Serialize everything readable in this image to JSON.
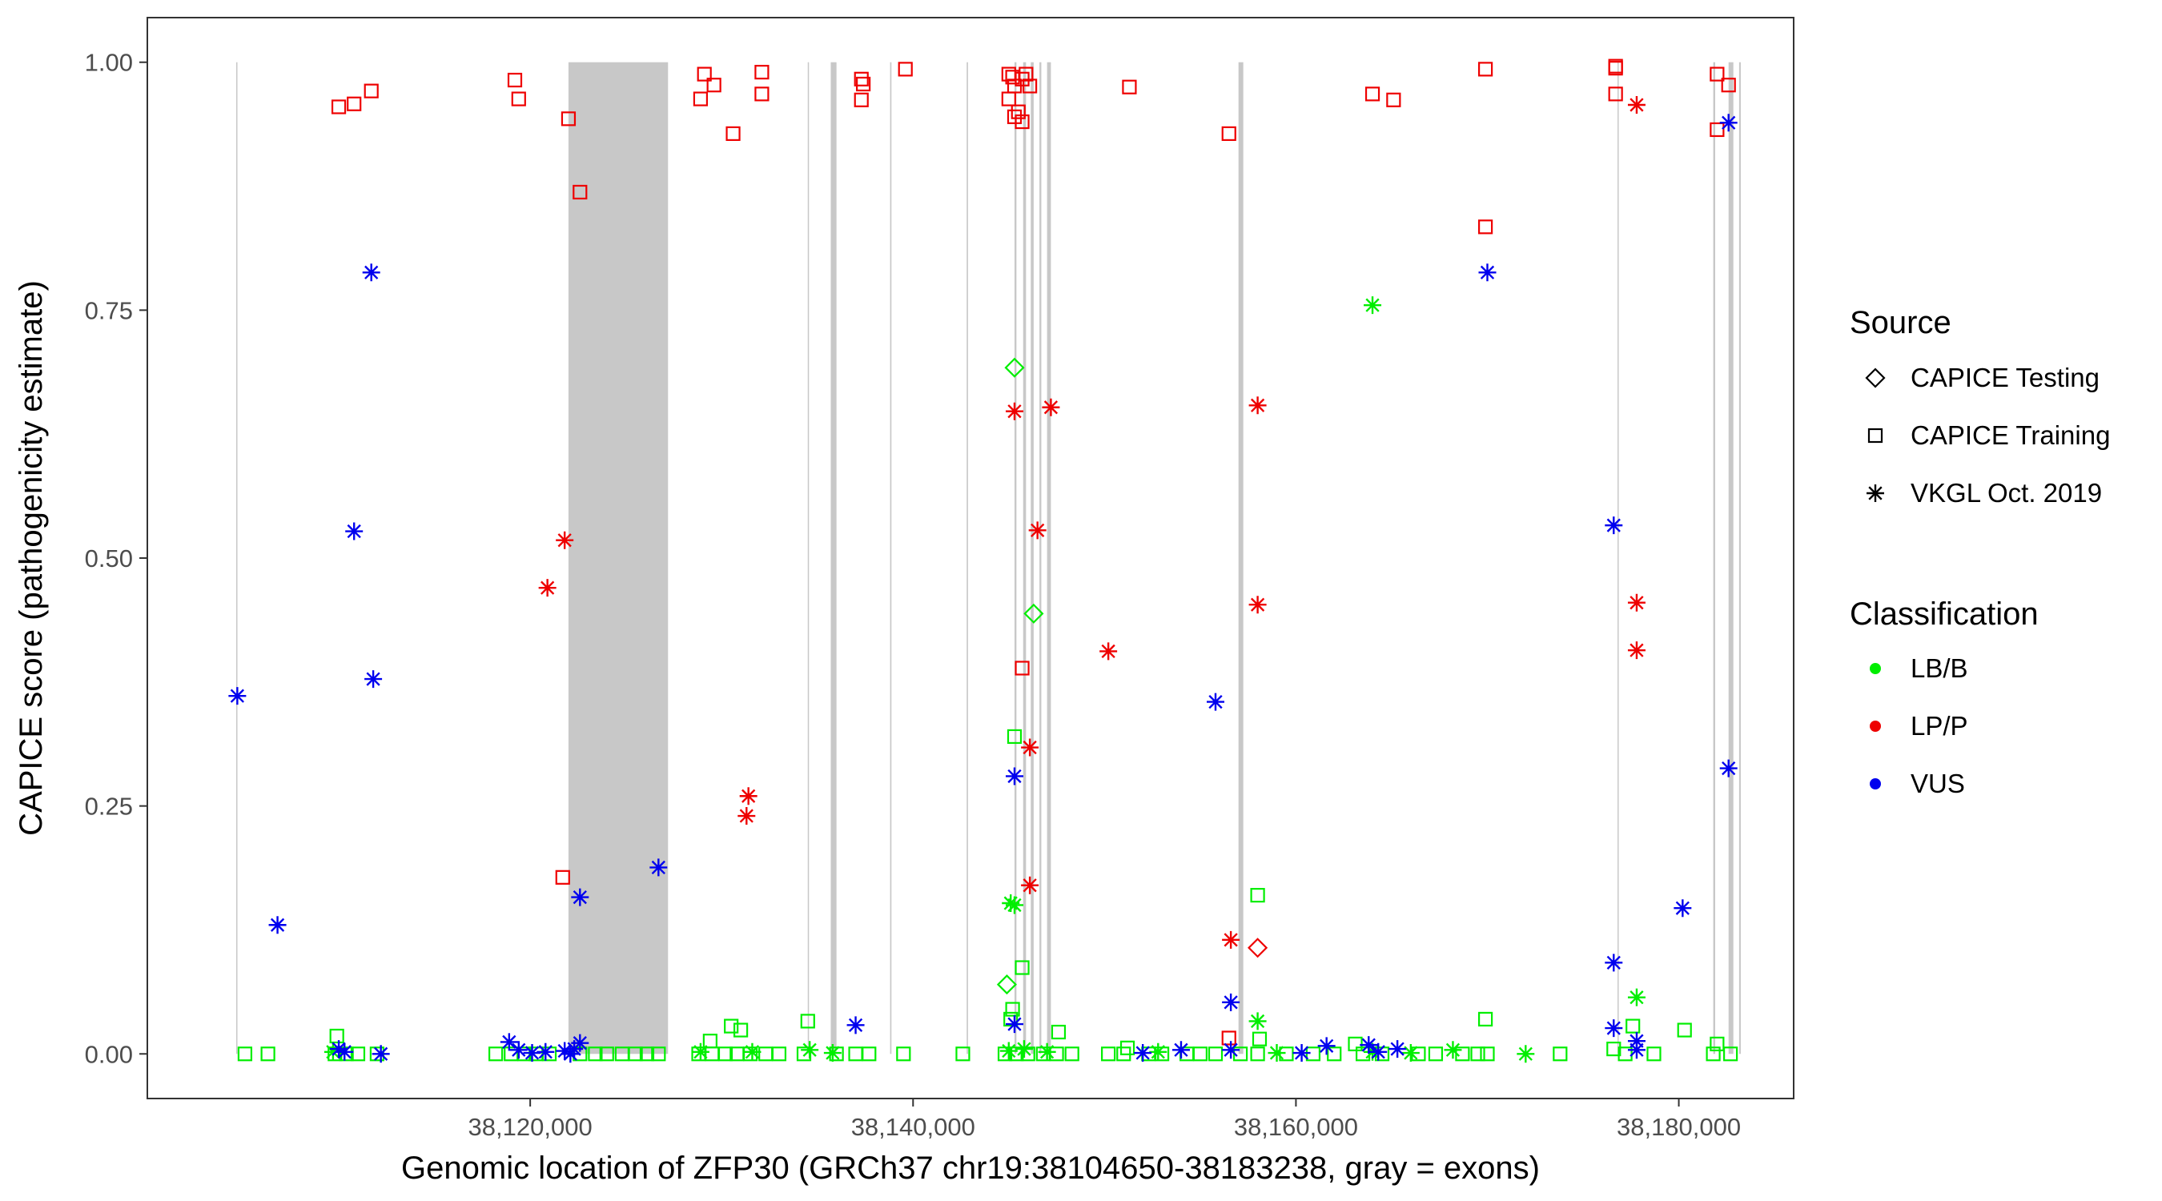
{
  "chart_data": {
    "type": "scatter",
    "title": "",
    "xlabel": "Genomic location of ZFP30 (GRCh37 chr19:38104650-38183238, gray = exons)",
    "ylabel": "CAPICE score (pathogenicity estimate)",
    "xlim": [
      38100000,
      38186000
    ],
    "ylim": [
      -0.045,
      1.045
    ],
    "x_ticks": [
      38120000,
      38140000,
      38160000,
      38180000
    ],
    "x_tick_labels": [
      "38,120,000",
      "38,140,000",
      "38,160,000",
      "38,180,000"
    ],
    "y_ticks": [
      0,
      0.25,
      0.5,
      0.75,
      1.0
    ],
    "y_tick_labels": [
      "0.00",
      "0.25",
      "0.50",
      "0.75",
      "1.00"
    ],
    "grid": false,
    "legend_position": "right",
    "legend_source_title": "Source",
    "legend_class_title": "Classification",
    "sources": [
      {
        "key": "testing",
        "label": "CAPICE Testing",
        "shape": "diamond"
      },
      {
        "key": "training",
        "label": "CAPICE Training",
        "shape": "square"
      },
      {
        "key": "vkgl",
        "label": "VKGL Oct. 2019",
        "shape": "asterisk"
      }
    ],
    "classes": [
      {
        "key": "LB/B",
        "label": "LB/B",
        "color": "#00ee00"
      },
      {
        "key": "LP/P",
        "label": "LP/P",
        "color": "#ee0000"
      },
      {
        "key": "VUS",
        "label": "VUS",
        "color": "#0000ee"
      }
    ],
    "exons": [
      [
        38104650,
        38104700
      ],
      [
        38122000,
        38127200
      ],
      [
        38134500,
        38134560
      ],
      [
        38135700,
        38136000
      ],
      [
        38138800,
        38138870
      ],
      [
        38142800,
        38142870
      ],
      [
        38145300,
        38145400
      ],
      [
        38145750,
        38145900
      ],
      [
        38146150,
        38146300
      ],
      [
        38146600,
        38146700
      ],
      [
        38147000,
        38147200
      ],
      [
        38157000,
        38157250
      ],
      [
        38176800,
        38176860
      ],
      [
        38181800,
        38181900
      ],
      [
        38182600,
        38182850
      ],
      [
        38183150,
        38183238
      ]
    ],
    "series": [
      {
        "name": "CAPICE Training LP/P",
        "source": "training",
        "class": "LP/P",
        "points": [
          [
            38110000,
            0.955
          ],
          [
            38110800,
            0.958
          ],
          [
            38111700,
            0.971
          ],
          [
            38119200,
            0.982
          ],
          [
            38119400,
            0.963
          ],
          [
            38122000,
            0.943
          ],
          [
            38122600,
            0.869
          ],
          [
            38121700,
            0.178
          ],
          [
            38129100,
            0.988
          ],
          [
            38129600,
            0.977
          ],
          [
            38128900,
            0.963
          ],
          [
            38130600,
            0.928
          ],
          [
            38132100,
            0.99
          ],
          [
            38132100,
            0.968
          ],
          [
            38137300,
            0.983
          ],
          [
            38137400,
            0.978
          ],
          [
            38137300,
            0.962
          ],
          [
            38139600,
            0.993
          ],
          [
            38145000,
            0.988
          ],
          [
            38145200,
            0.985
          ],
          [
            38145700,
            0.983
          ],
          [
            38145900,
            0.988
          ],
          [
            38146100,
            0.976
          ],
          [
            38145300,
            0.976
          ],
          [
            38145000,
            0.963
          ],
          [
            38145500,
            0.95
          ],
          [
            38145300,
            0.945
          ],
          [
            38145700,
            0.94
          ],
          [
            38145700,
            0.389
          ],
          [
            38151300,
            0.975
          ],
          [
            38156500,
            0.928
          ],
          [
            38156500,
            0.016
          ],
          [
            38164000,
            0.968
          ],
          [
            38165100,
            0.962
          ],
          [
            38169900,
            0.993
          ],
          [
            38169900,
            0.834
          ],
          [
            38176700,
            0.996
          ],
          [
            38176700,
            0.994
          ],
          [
            38176700,
            0.968
          ],
          [
            38182000,
            0.988
          ],
          [
            38182000,
            0.932
          ],
          [
            38182600,
            0.977
          ]
        ]
      },
      {
        "name": "CAPICE Testing LP/P",
        "source": "testing",
        "class": "LP/P",
        "points": [
          [
            38158000,
            0.107
          ]
        ]
      },
      {
        "name": "VKGL LP/P",
        "source": "vkgl",
        "class": "LP/P",
        "points": [
          [
            38121800,
            0.518
          ],
          [
            38120900,
            0.47
          ],
          [
            38131400,
            0.26
          ],
          [
            38131300,
            0.24
          ],
          [
            38145300,
            0.648
          ],
          [
            38147200,
            0.652
          ],
          [
            38146500,
            0.528
          ],
          [
            38146100,
            0.309
          ],
          [
            38146100,
            0.17
          ],
          [
            38150200,
            0.406
          ],
          [
            38158000,
            0.654
          ],
          [
            38158000,
            0.453
          ],
          [
            38156600,
            0.115
          ],
          [
            38177800,
            0.957
          ],
          [
            38177800,
            0.455
          ],
          [
            38177800,
            0.407
          ]
        ]
      },
      {
        "name": "CAPICE Training LB/B",
        "source": "training",
        "class": "LB/B",
        "points": [
          [
            38109900,
            0.018
          ],
          [
            38145300,
            0.32
          ],
          [
            38145700,
            0.087
          ],
          [
            38145200,
            0.045
          ],
          [
            38145100,
            0.035
          ],
          [
            38147600,
            0.022
          ],
          [
            38134500,
            0.033
          ],
          [
            38130500,
            0.028
          ],
          [
            38131000,
            0.024
          ],
          [
            38129400,
            0.013
          ],
          [
            38158000,
            0.16
          ],
          [
            38158100,
            0.015
          ],
          [
            38169900,
            0.035
          ],
          [
            38176600,
            0.005
          ],
          [
            38177600,
            0.028
          ],
          [
            38180300,
            0.024
          ],
          [
            38182000,
            0.01
          ],
          [
            38163100,
            0.01
          ],
          [
            38151200,
            0.006
          ],
          [
            38105100,
            0.0
          ],
          [
            38106300,
            0.0
          ],
          [
            38109800,
            0.0
          ],
          [
            38110400,
            0.0
          ],
          [
            38111000,
            0.0
          ],
          [
            38112000,
            0.0
          ],
          [
            38118200,
            0.0
          ],
          [
            38119000,
            0.0
          ],
          [
            38119700,
            0.0
          ],
          [
            38120300,
            0.0
          ],
          [
            38121000,
            0.0
          ],
          [
            38122600,
            0.0
          ],
          [
            38123400,
            0.0
          ],
          [
            38124000,
            0.0
          ],
          [
            38124800,
            0.0
          ],
          [
            38125500,
            0.0
          ],
          [
            38126100,
            0.0
          ],
          [
            38126700,
            0.0
          ],
          [
            38128800,
            0.0
          ],
          [
            38129500,
            0.0
          ],
          [
            38130200,
            0.0
          ],
          [
            38130800,
            0.0
          ],
          [
            38131500,
            0.0
          ],
          [
            38132300,
            0.0
          ],
          [
            38133000,
            0.0
          ],
          [
            38134300,
            0.0
          ],
          [
            38136000,
            0.0
          ],
          [
            38137000,
            0.0
          ],
          [
            38137700,
            0.0
          ],
          [
            38139500,
            0.0
          ],
          [
            38142600,
            0.0
          ],
          [
            38144800,
            0.0
          ],
          [
            38145400,
            0.0
          ],
          [
            38146000,
            0.0
          ],
          [
            38146800,
            0.0
          ],
          [
            38147500,
            0.0
          ],
          [
            38148300,
            0.0
          ],
          [
            38150200,
            0.0
          ],
          [
            38151000,
            0.0
          ],
          [
            38152300,
            0.0
          ],
          [
            38153000,
            0.0
          ],
          [
            38154300,
            0.0
          ],
          [
            38155000,
            0.0
          ],
          [
            38155800,
            0.0
          ],
          [
            38157100,
            0.0
          ],
          [
            38158000,
            0.0
          ],
          [
            38159500,
            0.0
          ],
          [
            38160900,
            0.0
          ],
          [
            38162000,
            0.0
          ],
          [
            38163500,
            0.0
          ],
          [
            38164500,
            0.0
          ],
          [
            38166400,
            0.0
          ],
          [
            38167300,
            0.0
          ],
          [
            38168700,
            0.0
          ],
          [
            38169500,
            0.0
          ],
          [
            38170000,
            0.0
          ],
          [
            38173800,
            0.0
          ],
          [
            38177200,
            0.0
          ],
          [
            38178700,
            0.0
          ],
          [
            38181800,
            0.0
          ],
          [
            38182700,
            0.0
          ]
        ]
      },
      {
        "name": "CAPICE Testing LB/B",
        "source": "testing",
        "class": "LB/B",
        "points": [
          [
            38145300,
            0.692
          ],
          [
            38146300,
            0.444
          ],
          [
            38144900,
            0.07
          ]
        ]
      },
      {
        "name": "VKGL LB/B",
        "source": "vkgl",
        "class": "LB/B",
        "points": [
          [
            38164000,
            0.755
          ],
          [
            38145100,
            0.152
          ],
          [
            38145300,
            0.15
          ],
          [
            38158000,
            0.033
          ],
          [
            38177800,
            0.057
          ],
          [
            38109700,
            0.002
          ],
          [
            38128900,
            0.002
          ],
          [
            38131600,
            0.002
          ],
          [
            38134600,
            0.004
          ],
          [
            38135800,
            0.001
          ],
          [
            38145000,
            0.003
          ],
          [
            38145800,
            0.005
          ],
          [
            38147000,
            0.002
          ],
          [
            38152800,
            0.002
          ],
          [
            38159000,
            0.001
          ],
          [
            38164000,
            0.002
          ],
          [
            38166000,
            0.001
          ],
          [
            38168200,
            0.004
          ],
          [
            38172000,
            0.0
          ]
        ]
      },
      {
        "name": "VKGL VUS",
        "source": "vkgl",
        "class": "VUS",
        "points": [
          [
            38111700,
            0.788
          ],
          [
            38110800,
            0.527
          ],
          [
            38111800,
            0.378
          ],
          [
            38104700,
            0.361
          ],
          [
            38106800,
            0.13
          ],
          [
            38122600,
            0.158
          ],
          [
            38126700,
            0.188
          ],
          [
            38137000,
            0.029
          ],
          [
            38145300,
            0.28
          ],
          [
            38145300,
            0.03
          ],
          [
            38155800,
            0.355
          ],
          [
            38156600,
            0.052
          ],
          [
            38170000,
            0.788
          ],
          [
            38176600,
            0.533
          ],
          [
            38176600,
            0.092
          ],
          [
            38176600,
            0.026
          ],
          [
            38180200,
            0.147
          ],
          [
            38182600,
            0.939
          ],
          [
            38182600,
            0.288
          ],
          [
            38110000,
            0.005
          ],
          [
            38110300,
            0.002
          ],
          [
            38112200,
            0.0
          ],
          [
            38118900,
            0.012
          ],
          [
            38119400,
            0.004
          ],
          [
            38120100,
            0.001
          ],
          [
            38120800,
            0.002
          ],
          [
            38121800,
            0.003
          ],
          [
            38122300,
            0.005
          ],
          [
            38122600,
            0.011
          ],
          [
            38122100,
            0.0
          ],
          [
            38152000,
            0.001
          ],
          [
            38154000,
            0.004
          ],
          [
            38156600,
            0.004
          ],
          [
            38160300,
            0.001
          ],
          [
            38161600,
            0.008
          ],
          [
            38163800,
            0.009
          ],
          [
            38164300,
            0.002
          ],
          [
            38165300,
            0.005
          ],
          [
            38177800,
            0.013
          ],
          [
            38177800,
            0.004
          ]
        ]
      }
    ]
  }
}
